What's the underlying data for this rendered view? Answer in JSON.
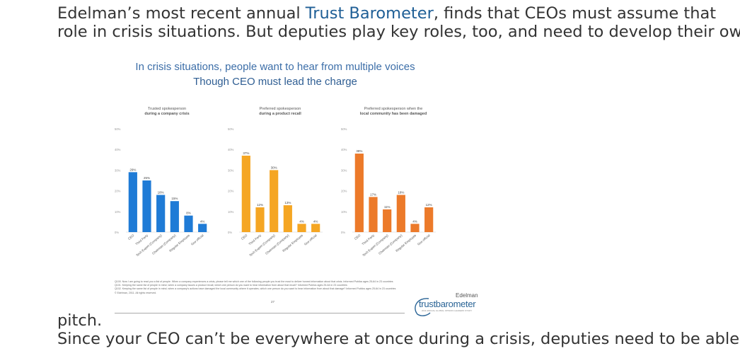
{
  "article": {
    "p1_line1_a": "Edelman’s most recent annual ",
    "p1_link": "Trust Barometer",
    "p1_line1_b": ", finds that CEOs must assume that",
    "p1_line2": "role in crisis situations. But deputies play key roles, too, and need to develop their own",
    "p1_line3": "pitch.",
    "p2_line1": "Since your CEO can’t be everywhere at once during a crisis, deputies need to be able"
  },
  "slide": {
    "title1": "In crisis situations, people want to hear from multiple voices",
    "title2": "Though CEO must lead the charge",
    "footnotes": [
      "Q100. Now I am going to read you a list of people. When a company experiences a crisis, please tell me which one of the following people you trust the most to deliver honest information about that crisis. Informed Publics ages 25-64 in 23 countries",
      "Q101. Keeping the same list of people in mind, when a company issues a product recall, which one person do you want to hear information from about that recall? Informed Publics ages 25-64 in 23 countries",
      "Q102. Keeping the same list of people in mind, when a company's actions have damaged the local community where it operates, which one person do you want to hear information from about that damage? Informed Publics ages 25-64 in 23 countries",
      "© Edelman, 2011. All rights reserved."
    ],
    "page_number": "27",
    "logo_small": "Edelman",
    "logo_brand": "trustbarometer",
    "logo_tag": "2011 ANNUAL GLOBAL OPINION LEADERS STUDY"
  },
  "chart_data": [
    {
      "type": "bar",
      "title": "Trusted spokesperson during a company crisis",
      "title_lines": [
        "Trusted spokesperson",
        "during a company crisis"
      ],
      "categories": [
        "CEO",
        "Third Party",
        "Tech Expert (Company)",
        "Chairman (Company)",
        "Regular Employee",
        "Gov official"
      ],
      "values": [
        29,
        25,
        18,
        15,
        8,
        4
      ],
      "labels": [
        "29%",
        "25%",
        "18%",
        "15%",
        "8%",
        "4%"
      ],
      "yticks": [
        "0%",
        "10%",
        "20%",
        "30%",
        "40%",
        "50%"
      ],
      "ylim": [
        0,
        50
      ],
      "color": "#1f7bd6"
    },
    {
      "type": "bar",
      "title": "Preferred spokesperson during a product recall",
      "title_lines": [
        "Preferred spokesperson",
        "during a product recall"
      ],
      "categories": [
        "CEO",
        "Third Party",
        "Tech Expert (Company)",
        "Chairman (Company)",
        "Regular Employee",
        "Gov official"
      ],
      "values": [
        37,
        12,
        30,
        13,
        4,
        4
      ],
      "labels": [
        "37%",
        "12%",
        "30%",
        "13%",
        "4%",
        "4%"
      ],
      "yticks": [
        "0%",
        "10%",
        "20%",
        "30%",
        "40%",
        "50%"
      ],
      "ylim": [
        0,
        50
      ],
      "color": "#f5a623"
    },
    {
      "type": "bar",
      "title": "Preferred spokesperson when the local community has been damaged",
      "title_lines": [
        "Preferred spokesperson when the",
        "local community has been damaged"
      ],
      "categories": [
        "CEO",
        "Third Party",
        "Tech Expert (Company)",
        "Chairman (Company)",
        "Regular Employee",
        "Gov official"
      ],
      "values": [
        38,
        17,
        11,
        18,
        4,
        12
      ],
      "labels": [
        "38%",
        "17%",
        "11%",
        "18%",
        "4%",
        "12%"
      ],
      "yticks": [
        "0%",
        "10%",
        "20%",
        "30%",
        "40%",
        "50%"
      ],
      "ylim": [
        0,
        50
      ],
      "color": "#ec7a2a"
    }
  ]
}
